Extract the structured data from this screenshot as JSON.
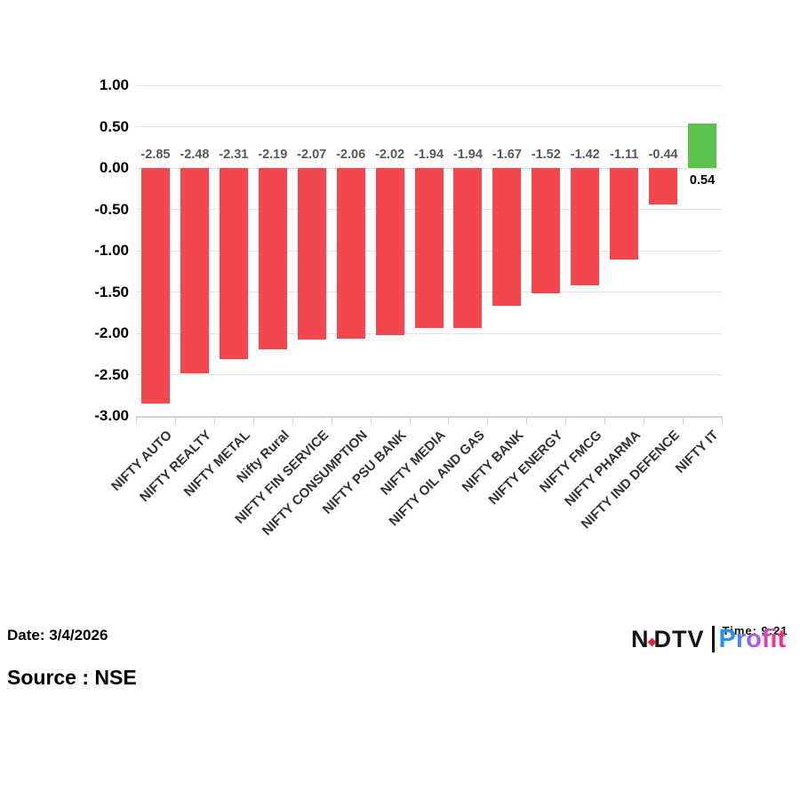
{
  "chart_data": {
    "type": "bar",
    "title": "",
    "xlabel": "",
    "ylabel": "",
    "categories": [
      "NIFTY AUTO",
      "NIFTY REALTY",
      "NIFTY METAL",
      "Nifty Rural",
      "NIFTY FIN SERVICE",
      "NIFTY CONSUMPTION",
      "NIFTY PSU BANK",
      "NIFTY MEDIA",
      "NIFTY OIL AND GAS",
      "NIFTY BANK",
      "NIFTY ENERGY",
      "NIFTY FMCG",
      "NIFTY PHARMA",
      "NIFTY IND DEFENCE",
      "NIFTY IT"
    ],
    "values": [
      -2.85,
      -2.48,
      -2.31,
      -2.19,
      -2.07,
      -2.06,
      -2.02,
      -1.94,
      -1.94,
      -1.67,
      -1.52,
      -1.42,
      -1.11,
      -0.44,
      0.54
    ],
    "value_labels": [
      "-2.85",
      "-2.48",
      "-2.31",
      "-2.19",
      "-2.07",
      "-2.06",
      "-2.02",
      "-1.94",
      "-1.94",
      "-1.67",
      "-1.52",
      "-1.42",
      "-1.11",
      "-0.44",
      "0.54"
    ],
    "ylim": [
      -3.0,
      1.0
    ],
    "yticks": [
      "1.00",
      "0.50",
      "0.00",
      "-0.50",
      "-1.00",
      "-1.50",
      "-2.00",
      "-2.50",
      "-3.00"
    ],
    "grid": true,
    "legend": "none",
    "colors": {
      "negative_bar": "#F4474D",
      "positive_bar": "#5CC24E",
      "negative_value_label": "#595959",
      "positive_value_label": "#000000",
      "gridline": "#E4E4E4",
      "axis": "#D2D2D2",
      "category_label": "#333333",
      "tick_label": "#000000"
    }
  },
  "footer": {
    "date_label": "Date: 3/4/2026",
    "source_label": "Source : NSE",
    "logo": {
      "ndtv_n": "N",
      "ndtv_dtv": "DTV",
      "profit": "Profit",
      "overlay_text": "Time: 9:21"
    }
  }
}
